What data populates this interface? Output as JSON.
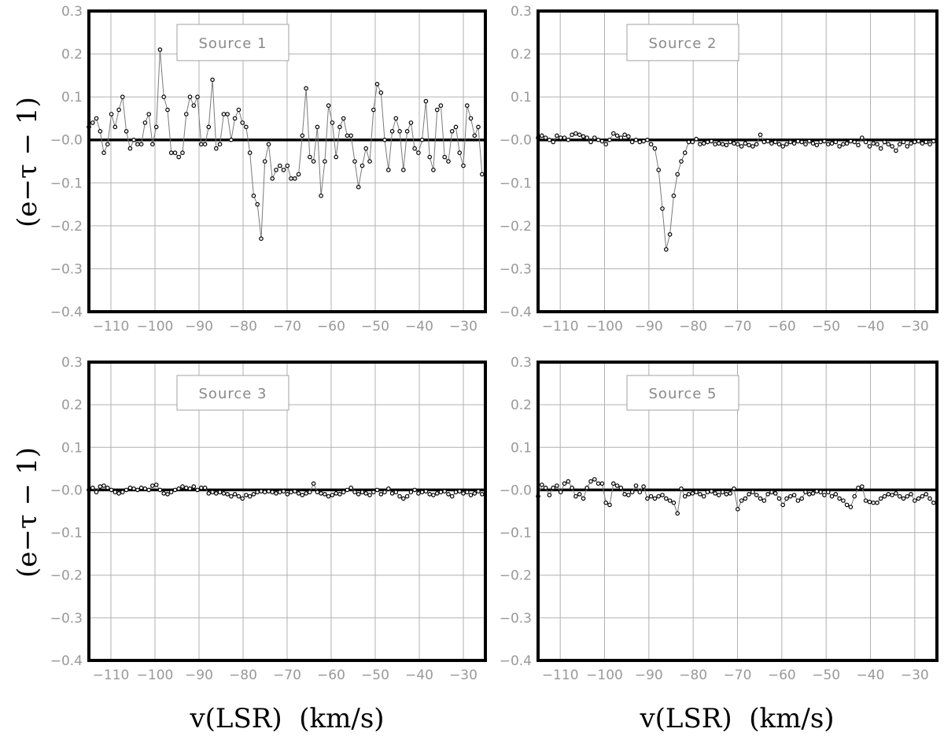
{
  "figure": {
    "xlabel": "v(LSR)  (km/s)",
    "ylabel": "(e−τ − 1)"
  },
  "chart_data": [
    {
      "type": "line",
      "legend": "Source 1",
      "xlim": [
        -115,
        -25
      ],
      "ylim": [
        -0.4,
        0.3
      ],
      "xticks": [
        -110,
        -100,
        -90,
        -80,
        -70,
        -60,
        -50,
        -40,
        -30
      ],
      "xtick_labels": [
        "−110",
        "−100",
        "−90",
        "−80",
        "−70",
        "−60",
        "−50",
        "−40",
        "−30"
      ],
      "yticks": [
        0.3,
        0.2,
        0.1,
        0.0,
        -0.1,
        -0.2,
        -0.3,
        -0.4
      ],
      "ytick_labels": [
        "0.3",
        "0.2",
        "0.1",
        "−0.0",
        "−0.1",
        "−0.2",
        "−0.3",
        "−0.4"
      ],
      "grid": true,
      "legend_position": "top-left",
      "x_start": -115,
      "x_step": 0.85,
      "values": [
        0.03,
        0.04,
        0.05,
        0.02,
        -0.03,
        -0.01,
        0.06,
        0.03,
        0.07,
        0.1,
        0.02,
        -0.02,
        0.0,
        -0.01,
        -0.01,
        0.04,
        0.06,
        -0.01,
        0.03,
        0.21,
        0.1,
        0.07,
        -0.03,
        -0.03,
        -0.04,
        -0.03,
        0.06,
        0.1,
        0.08,
        0.1,
        -0.01,
        -0.01,
        0.03,
        0.14,
        -0.02,
        -0.01,
        0.06,
        0.06,
        0.0,
        0.05,
        0.07,
        0.04,
        0.03,
        -0.03,
        -0.13,
        -0.15,
        -0.23,
        -0.05,
        -0.01,
        -0.09,
        -0.07,
        -0.06,
        -0.07,
        -0.06,
        -0.09,
        -0.09,
        -0.08,
        0.01,
        0.12,
        -0.04,
        -0.05,
        0.03,
        -0.13,
        -0.05,
        0.08,
        0.04,
        -0.04,
        0.03,
        0.05,
        0.01,
        0.01,
        -0.05,
        -0.11,
        -0.06,
        -0.02,
        -0.05,
        0.07,
        0.13,
        0.11,
        0.0,
        -0.07,
        0.02,
        0.05,
        0.02,
        -0.07,
        0.02,
        0.04,
        -0.02,
        -0.03,
        0.0,
        0.09,
        -0.04,
        -0.07,
        0.07,
        0.08,
        -0.04,
        -0.05,
        0.02,
        0.03,
        -0.03,
        -0.06,
        0.08,
        0.05,
        0.01,
        0.03,
        -0.08,
        0.02,
        0.03
      ]
    },
    {
      "type": "line",
      "legend": "Source 2",
      "xlim": [
        -115,
        -25
      ],
      "ylim": [
        -0.4,
        0.3
      ],
      "xticks": [
        -110,
        -100,
        -90,
        -80,
        -70,
        -60,
        -50,
        -40,
        -30
      ],
      "xtick_labels": [
        "−110",
        "−100",
        "−90",
        "−80",
        "−70",
        "−60",
        "−50",
        "−40",
        "−30"
      ],
      "yticks": [
        0.3,
        0.2,
        0.1,
        0.0,
        -0.1,
        -0.2,
        -0.3,
        -0.4
      ],
      "ytick_labels": [
        "0.3",
        "0.2",
        "0.1",
        "−0.0",
        "−0.1",
        "−0.2",
        "−0.3",
        "−0.4"
      ],
      "grid": true,
      "legend_position": "top-left",
      "x_start": -115,
      "x_step": 0.85,
      "values": [
        0.005,
        0.01,
        0.005,
        0.0,
        -0.005,
        0.01,
        0.005,
        0.005,
        0.0,
        0.012,
        0.015,
        0.012,
        0.008,
        0.005,
        -0.005,
        0.005,
        0.0,
        -0.003,
        -0.01,
        0.0,
        0.015,
        0.01,
        0.005,
        0.012,
        0.008,
        -0.005,
        0.0,
        -0.005,
        -0.003,
        0.0,
        -0.01,
        -0.02,
        -0.07,
        -0.16,
        -0.255,
        -0.22,
        -0.13,
        -0.08,
        -0.05,
        -0.03,
        -0.005,
        -0.005,
        0.002,
        -0.01,
        -0.008,
        -0.005,
        -0.003,
        -0.01,
        -0.008,
        -0.01,
        -0.012,
        -0.005,
        -0.008,
        -0.01,
        -0.015,
        -0.008,
        -0.012,
        -0.015,
        -0.01,
        0.012,
        -0.005,
        -0.003,
        -0.008,
        -0.005,
        -0.01,
        -0.015,
        -0.01,
        -0.005,
        -0.008,
        -0.003,
        -0.005,
        -0.01,
        -0.003,
        -0.008,
        -0.012,
        -0.005,
        -0.003,
        -0.01,
        -0.008,
        -0.005,
        -0.015,
        -0.01,
        -0.008,
        -0.003,
        -0.005,
        -0.012,
        0.005,
        -0.005,
        -0.015,
        -0.008,
        -0.01,
        -0.02,
        -0.005,
        -0.01,
        -0.015,
        -0.025,
        -0.01,
        -0.005,
        -0.015,
        -0.008,
        -0.005,
        -0.003,
        -0.008,
        -0.005,
        -0.01,
        -0.003,
        -0.005,
        0.0
      ]
    },
    {
      "type": "line",
      "legend": "Source 3",
      "xlim": [
        -115,
        -25
      ],
      "ylim": [
        -0.4,
        0.3
      ],
      "xticks": [
        -110,
        -100,
        -90,
        -80,
        -70,
        -60,
        -50,
        -40,
        -30
      ],
      "xtick_labels": [
        "−110",
        "−100",
        "−90",
        "−80",
        "−70",
        "−60",
        "−50",
        "−40",
        "−30"
      ],
      "yticks": [
        0.3,
        0.2,
        0.1,
        0.0,
        -0.1,
        -0.2,
        -0.3,
        -0.4
      ],
      "ytick_labels": [
        "0.3",
        "0.2",
        "0.1",
        "−0.0",
        "−0.1",
        "−0.2",
        "−0.3",
        "−0.4"
      ],
      "grid": true,
      "legend_position": "top-left",
      "x_start": -115,
      "x_step": 0.85,
      "values": [
        0.0,
        0.005,
        -0.005,
        0.008,
        0.01,
        0.005,
        0.0,
        -0.005,
        -0.008,
        -0.005,
        0.0,
        0.005,
        0.003,
        0.0,
        0.005,
        0.003,
        0.0,
        0.01,
        0.012,
        0.0,
        -0.008,
        -0.01,
        -0.005,
        0.0,
        0.003,
        0.008,
        0.005,
        0.003,
        0.008,
        0.0,
        0.005,
        0.005,
        -0.008,
        -0.005,
        -0.008,
        -0.005,
        -0.008,
        -0.01,
        -0.015,
        -0.01,
        -0.015,
        -0.02,
        -0.012,
        -0.015,
        -0.01,
        -0.005,
        -0.003,
        -0.005,
        -0.003,
        -0.005,
        -0.008,
        -0.005,
        -0.003,
        -0.01,
        -0.005,
        -0.003,
        -0.008,
        -0.012,
        -0.008,
        -0.005,
        0.015,
        -0.005,
        -0.008,
        -0.01,
        -0.015,
        -0.012,
        -0.008,
        -0.01,
        -0.005,
        0.0,
        0.005,
        -0.005,
        -0.01,
        -0.005,
        -0.008,
        -0.012,
        -0.005,
        0.0,
        -0.01,
        -0.005,
        0.003,
        -0.008,
        -0.005,
        -0.015,
        -0.02,
        -0.015,
        -0.005,
        0.0,
        -0.008,
        -0.005,
        -0.003,
        -0.01,
        -0.012,
        -0.008,
        -0.005,
        -0.003,
        -0.01,
        -0.015,
        -0.005,
        -0.003,
        -0.008,
        -0.005,
        -0.012,
        -0.008,
        -0.003,
        -0.01,
        -0.005,
        -0.015
      ]
    },
    {
      "type": "line",
      "legend": "Source 5",
      "xlim": [
        -115,
        -25
      ],
      "ylim": [
        -0.4,
        0.3
      ],
      "xticks": [
        -110,
        -100,
        -90,
        -80,
        -70,
        -60,
        -50,
        -40,
        -30
      ],
      "xtick_labels": [
        "−110",
        "−100",
        "−90",
        "−80",
        "−70",
        "−60",
        "−50",
        "−40",
        "−30"
      ],
      "yticks": [
        0.3,
        0.2,
        0.1,
        0.0,
        -0.1,
        -0.2,
        -0.3,
        -0.4
      ],
      "ytick_labels": [
        "0.3",
        "0.2",
        "0.1",
        "−0.0",
        "−0.1",
        "−0.2",
        "−0.3",
        "−0.4"
      ],
      "grid": true,
      "legend_position": "top-left",
      "x_start": -115,
      "x_step": 0.85,
      "values": [
        -0.015,
        0.012,
        0.005,
        -0.012,
        0.005,
        0.01,
        -0.005,
        0.015,
        0.02,
        0.005,
        -0.015,
        -0.01,
        -0.02,
        0.005,
        0.02,
        0.025,
        0.015,
        0.015,
        -0.03,
        -0.035,
        0.015,
        0.01,
        0.005,
        -0.01,
        -0.012,
        -0.005,
        0.01,
        -0.005,
        0.008,
        -0.02,
        -0.015,
        -0.02,
        -0.015,
        -0.012,
        -0.02,
        -0.025,
        -0.03,
        -0.055,
        0.003,
        -0.015,
        -0.01,
        -0.008,
        -0.005,
        -0.01,
        -0.015,
        -0.005,
        -0.003,
        -0.008,
        -0.012,
        -0.005,
        -0.01,
        -0.008,
        0.003,
        -0.045,
        -0.025,
        -0.02,
        -0.01,
        -0.005,
        -0.012,
        -0.02,
        -0.025,
        -0.01,
        -0.005,
        -0.008,
        -0.02,
        -0.035,
        -0.02,
        -0.015,
        -0.012,
        -0.025,
        -0.02,
        -0.005,
        -0.01,
        -0.008,
        -0.003,
        -0.005,
        -0.012,
        -0.005,
        -0.015,
        -0.01,
        -0.02,
        -0.025,
        -0.035,
        -0.04,
        -0.015,
        0.005,
        0.008,
        -0.025,
        -0.028,
        -0.03,
        -0.03,
        -0.02,
        -0.015,
        -0.01,
        -0.012,
        -0.008,
        -0.015,
        -0.02,
        -0.015,
        -0.01,
        -0.025,
        -0.02,
        -0.015,
        -0.01,
        -0.02,
        -0.03,
        -0.035,
        -0.04
      ]
    }
  ]
}
